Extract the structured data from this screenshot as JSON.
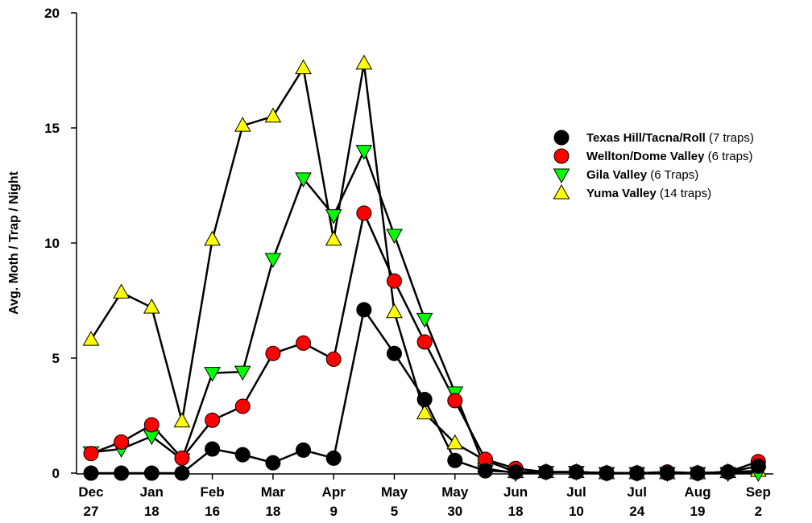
{
  "chart_data": {
    "type": "line",
    "ylabel": "Avg. Moth / Trap / Night",
    "xlabel": "",
    "ylim": [
      0,
      20
    ],
    "yticks": [
      0,
      5,
      10,
      15,
      20
    ],
    "x_tick_labels": [
      {
        "line1": "Dec",
        "line2": "27"
      },
      {
        "line1": "Jan",
        "line2": "18"
      },
      {
        "line1": "Feb",
        "line2": "16"
      },
      {
        "line1": "Mar",
        "line2": "18"
      },
      {
        "line1": "Apr",
        "line2": "9"
      },
      {
        "line1": "May",
        "line2": "5"
      },
      {
        "line1": "May",
        "line2": "30"
      },
      {
        "line1": "Jun",
        "line2": "18"
      },
      {
        "line1": "Jul",
        "line2": "10"
      },
      {
        "line1": "Jul",
        "line2": "24"
      },
      {
        "line1": "Aug",
        "line2": "19"
      },
      {
        "line1": "Sep",
        "line2": "2"
      }
    ],
    "x_tick_positions": [
      0,
      2,
      4,
      6,
      8,
      10,
      12,
      14,
      16,
      18,
      20,
      22
    ],
    "x": [
      0,
      1,
      2,
      3,
      4,
      5,
      6,
      7,
      8,
      9,
      10,
      11,
      12,
      13,
      14,
      15,
      16,
      17,
      18,
      19,
      20,
      21,
      22
    ],
    "grid": false,
    "legend_position": "right",
    "series": [
      {
        "name": "Texas Hill/Tacna/Roll",
        "note": "(7 traps)",
        "marker": "circle",
        "color": "#000000",
        "values": [
          0,
          0,
          0,
          0,
          1.05,
          0.8,
          0.45,
          1.0,
          0.65,
          7.1,
          5.2,
          3.2,
          0.55,
          0.1,
          0.05,
          0.05,
          0.05,
          0.0,
          0.0,
          0.0,
          0.0,
          0.05,
          0.3
        ]
      },
      {
        "name": "Wellton/Dome Valley",
        "note": "(6 traps)",
        "marker": "circle",
        "color": "#ff0000",
        "values": [
          0.85,
          1.35,
          2.1,
          0.65,
          2.3,
          2.9,
          5.2,
          5.65,
          4.95,
          11.3,
          8.35,
          5.7,
          3.15,
          0.6,
          0.2,
          0.05,
          0.05,
          0.0,
          0.0,
          0.05,
          0.0,
          0.05,
          0.5
        ]
      },
      {
        "name": "Gila Valley",
        "note": "(6 Traps)",
        "marker": "triangle-down",
        "color": "#00ff00",
        "values": [
          0.9,
          1.05,
          1.6,
          0.6,
          4.35,
          4.4,
          9.3,
          12.8,
          11.2,
          14.0,
          10.35,
          6.7,
          3.5,
          0.2,
          0.0,
          0.05,
          0.05,
          0.0,
          0.0,
          0.0,
          0.0,
          0.0,
          0.0
        ]
      },
      {
        "name": "Yuma Valley",
        "note": "(14 traps)",
        "marker": "triangle-up",
        "color": "#ffff00",
        "values": [
          5.8,
          7.85,
          7.2,
          2.25,
          10.15,
          15.1,
          15.5,
          17.6,
          10.15,
          17.8,
          7.0,
          2.6,
          1.3,
          0.55,
          0.05,
          0.05,
          0.05,
          0.0,
          0.0,
          0.0,
          0.0,
          0.05,
          0.1
        ]
      }
    ]
  }
}
